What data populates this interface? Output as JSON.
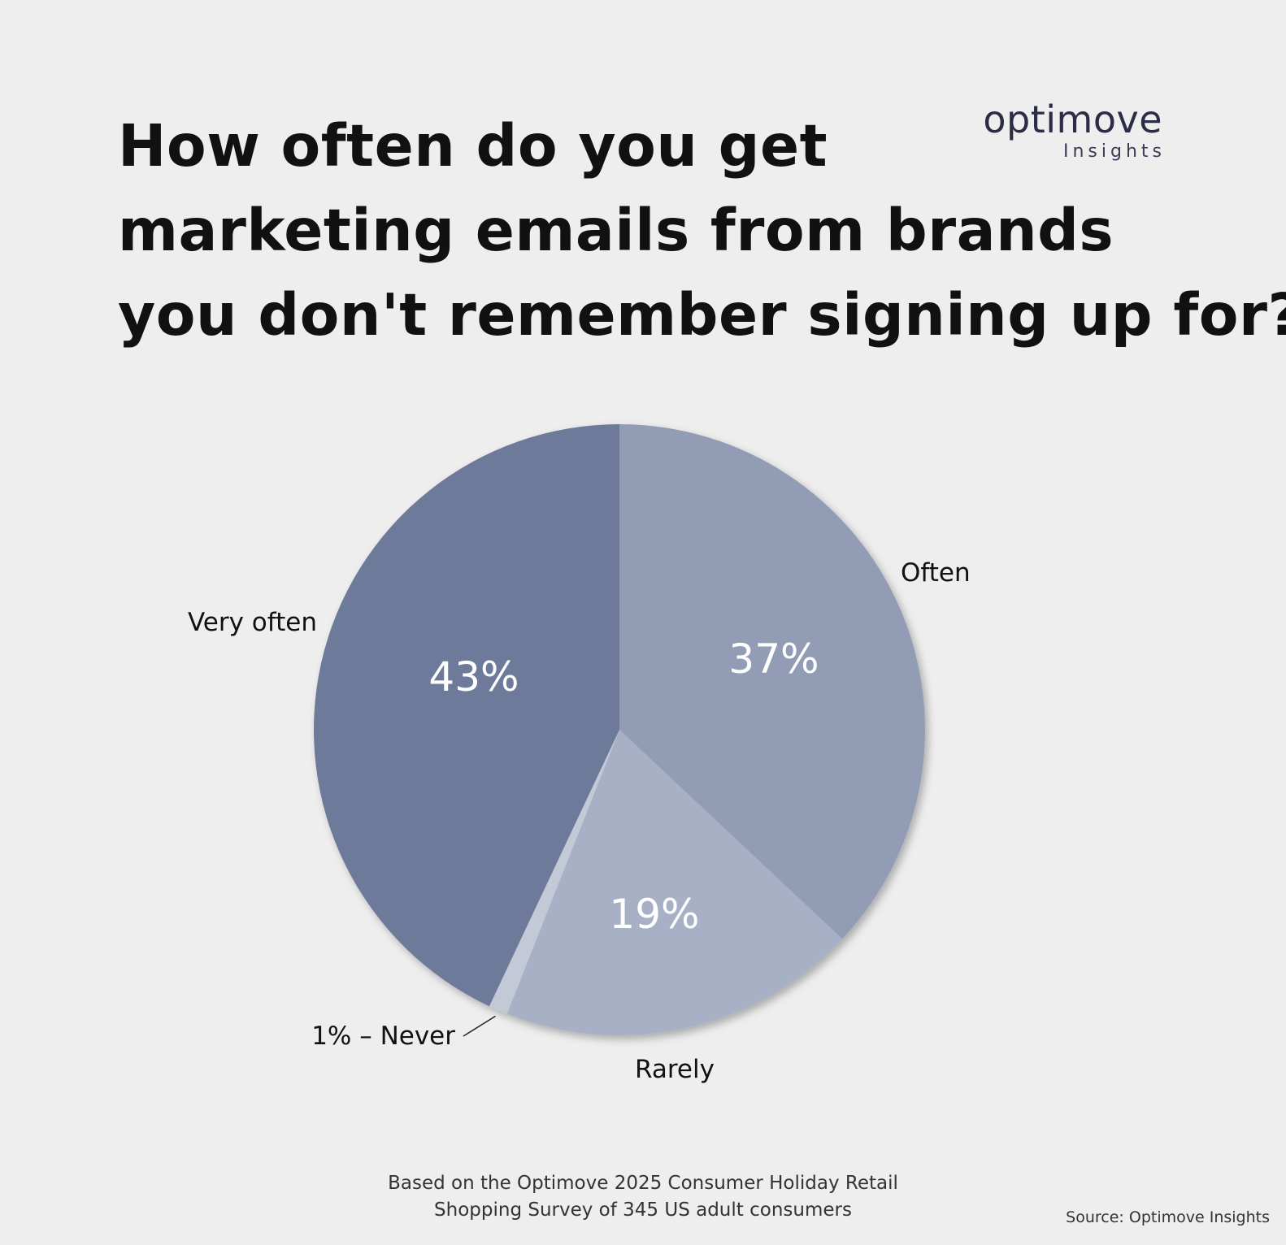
{
  "logo": {
    "word": "optimove",
    "sub": "Insights"
  },
  "title_lines": [
    "How often do you get",
    "marketing emails from brands",
    "you don't remember signing up for?"
  ],
  "chart_data": {
    "type": "pie",
    "title": "How often do you get marketing emails from brands you don't remember signing up for?",
    "slices": [
      {
        "label": "Often",
        "value": 37,
        "value_label": "37%",
        "color": "#939cb5"
      },
      {
        "label": "Rarely",
        "value": 19,
        "value_label": "19%",
        "color": "#a8b0c5"
      },
      {
        "label": "Never",
        "value": 1,
        "value_label": "1% – Never",
        "color": "#c4c9d8"
      },
      {
        "label": "Very often",
        "value": 43,
        "value_label": "43%",
        "color": "#6e7a9a"
      }
    ],
    "legend": "none"
  },
  "footnote": [
    "Based on the Optimove 2025 Consumer Holiday Retail",
    "Shopping Survey of 345 US adult consumers"
  ],
  "source": "Source: Optimove Insights"
}
